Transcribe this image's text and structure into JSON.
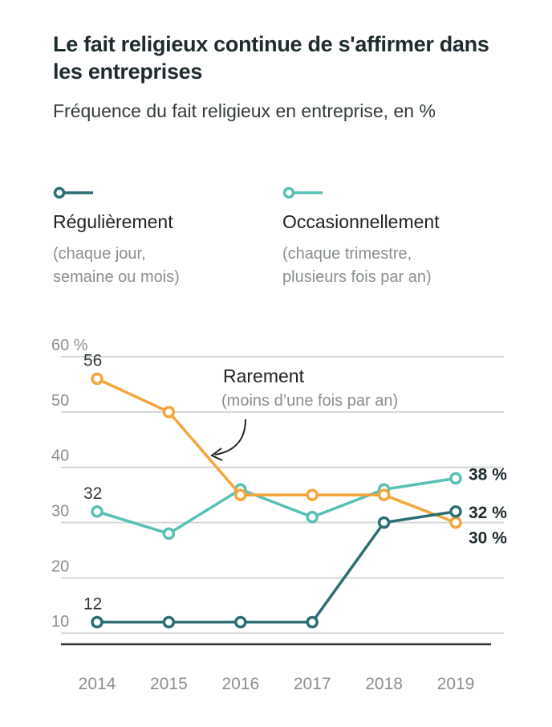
{
  "title": "Le fait religieux continue de s'affirmer dans les entreprises",
  "subtitle": "Fréquence du fait religieux en entreprise, en %",
  "legend": [
    {
      "label": "Régulièrement",
      "note_line1": "(chaque jour,",
      "note_line2": "semaine ou mois)",
      "color": "#2b6e73"
    },
    {
      "label": "Occasionnellement",
      "note_line1": "(chaque trimestre,",
      "note_line2": "plusieurs fois par an)",
      "color": "#58c0b4"
    }
  ],
  "annotation": {
    "label": "Rarement",
    "note": "(moins d’une fois par an)",
    "color": "#f5a53a"
  },
  "chart_data": {
    "type": "line",
    "x": [
      "2014",
      "2015",
      "2016",
      "2017",
      "2018",
      "2019"
    ],
    "yticks": [
      10,
      20,
      30,
      40,
      50,
      60
    ],
    "ytick_labels": [
      "10",
      "20",
      "30",
      "40",
      "50",
      "60 %"
    ],
    "ylim": [
      8,
      60
    ],
    "grid": true,
    "series": [
      {
        "name": "Régulièrement",
        "color": "#2b6e73",
        "values": [
          12,
          12,
          12,
          12,
          30,
          32
        ],
        "labels": {
          "start": "12",
          "end": "32 %"
        }
      },
      {
        "name": "Occasionnellement",
        "color": "#58c0b4",
        "values": [
          32,
          28,
          36,
          31,
          36,
          38
        ],
        "labels": {
          "start": "32",
          "end": "38 %"
        }
      },
      {
        "name": "Rarement",
        "color": "#f5a53a",
        "values": [
          56,
          50,
          35,
          35,
          35,
          30
        ],
        "labels": {
          "start": "56",
          "end": "30 %"
        }
      }
    ]
  }
}
